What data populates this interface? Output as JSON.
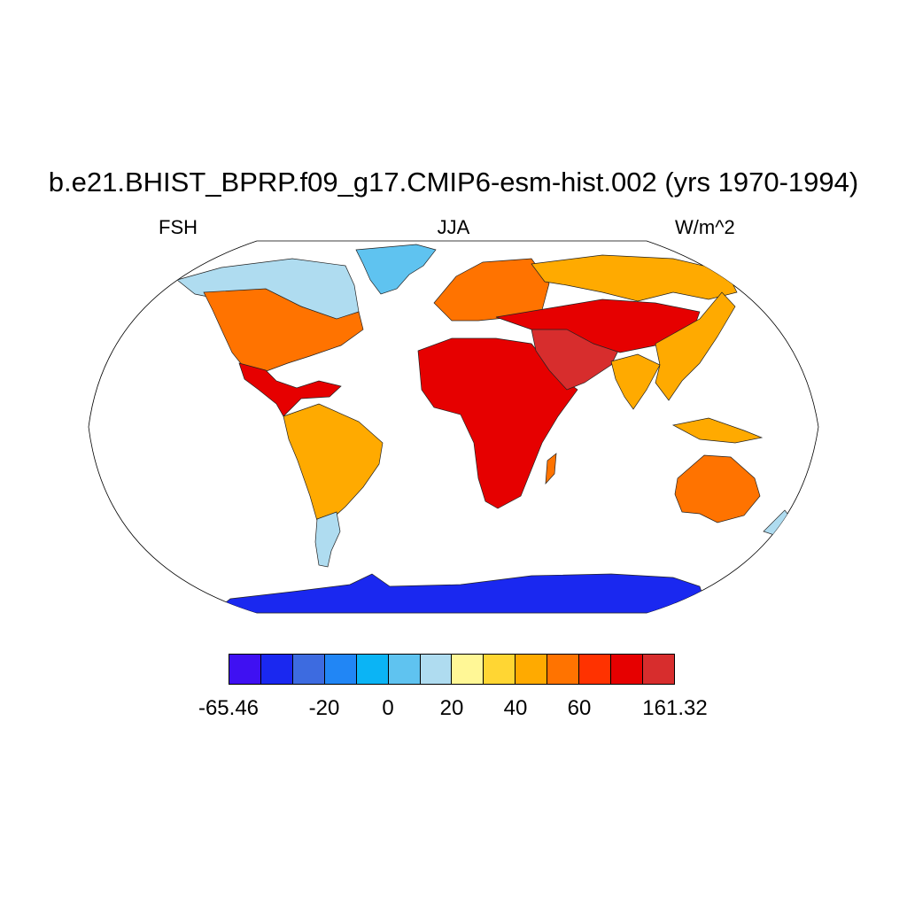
{
  "figure": {
    "title": "b.e21.BHIST_BPRP.f09_g17.CMIP6-esm-hist.002 (yrs 1970-1994)",
    "variable": "FSH",
    "season": "JJA",
    "units": "W/m^2"
  },
  "colorbar": {
    "colors": [
      "#3f10f2",
      "#1a28f0",
      "#3d6be0",
      "#2186f5",
      "#0bb4f5",
      "#5fc3f0",
      "#afdcf0",
      "#fff796",
      "#ffd633",
      "#ffaa00",
      "#ff7300",
      "#ff3200",
      "#e60000",
      "#d72d2d"
    ],
    "labels": [
      "-65.46",
      "-20",
      "0",
      "20",
      "40",
      "60",
      "161.32"
    ]
  },
  "map_regions": [
    {
      "name": "antarctica",
      "value": -45
    },
    {
      "name": "greenland",
      "value": -5
    },
    {
      "name": "canada-arctic",
      "value": 5
    },
    {
      "name": "north-america",
      "value": 45
    },
    {
      "name": "central-america",
      "value": 70
    },
    {
      "name": "south-america",
      "value": 35
    },
    {
      "name": "patagonia",
      "value": 5
    },
    {
      "name": "europe",
      "value": 40
    },
    {
      "name": "siberia",
      "value": 30
    },
    {
      "name": "africa",
      "value": 60
    },
    {
      "name": "middle-east",
      "value": 80
    },
    {
      "name": "central-asia",
      "value": 70
    },
    {
      "name": "india",
      "value": 30
    },
    {
      "name": "se-asia",
      "value": 35
    },
    {
      "name": "australia",
      "value": 45
    },
    {
      "name": "new-zealand",
      "value": 5
    }
  ]
}
